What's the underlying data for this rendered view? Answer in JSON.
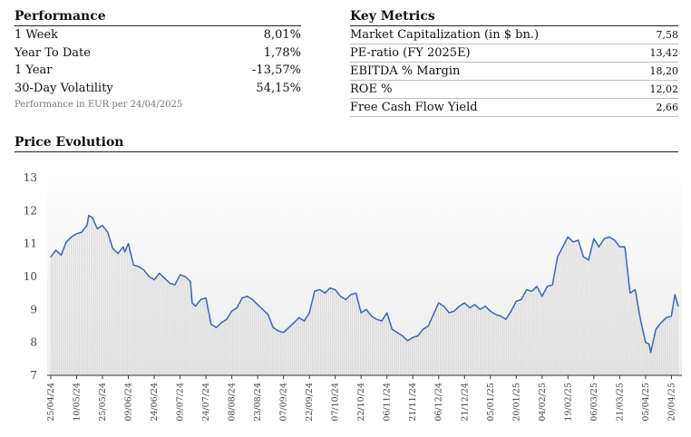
{
  "performance": {
    "title": "Performance",
    "rows": [
      {
        "label": "1 Week",
        "value": "8,01%"
      },
      {
        "label": "Year To Date",
        "value": "1,78%"
      },
      {
        "label": "1 Year",
        "value": "-13,57%"
      },
      {
        "label": "30-Day Volatility",
        "value": "54,15%"
      }
    ],
    "note": "Performance in EUR per 24/04/2025"
  },
  "key_metrics": {
    "title": "Key Metrics",
    "rows": [
      {
        "label": "Market Capitalization (in $ bn.)",
        "value": "7,58"
      },
      {
        "label": "PE-ratio (FY 2025E)",
        "value": "13,42"
      },
      {
        "label": "EBITDA % Margin",
        "value": "18,20"
      },
      {
        "label": "ROE %",
        "value": "12,02"
      },
      {
        "label": "Free Cash Flow Yield",
        "value": "2,66"
      }
    ]
  },
  "price_evolution": {
    "title": "Price Evolution"
  },
  "colors": {
    "line": "#3f66b0",
    "bars": "#d9d9d9",
    "axis": "#333333"
  },
  "chart_data": {
    "type": "line",
    "title": "Price Evolution",
    "ylim": [
      7,
      13
    ],
    "yticks": [
      7,
      8,
      9,
      10,
      11,
      12,
      13
    ],
    "grid": false,
    "xticks": [
      "25/04/24",
      "10/05/24",
      "25/05/24",
      "09/06/24",
      "24/06/24",
      "09/07/24",
      "24/07/24",
      "08/08/24",
      "23/08/24",
      "07/09/24",
      "22/09/24",
      "07/10/24",
      "22/10/24",
      "06/11/24",
      "21/11/24",
      "06/12/24",
      "21/12/24",
      "05/01/25",
      "20/01/25",
      "04/02/25",
      "19/02/25",
      "06/03/25",
      "21/03/25",
      "05/04/25",
      "20/04/25"
    ],
    "series": [
      {
        "x": [
          "25/04/24",
          "28/04/24",
          "01/05/24",
          "04/05/24",
          "07/05/24",
          "10/05/24",
          "13/05/24",
          "16/05/24",
          "17/05/24",
          "19/05/24",
          "22/05/24",
          "25/05/24",
          "28/05/24",
          "31/05/24",
          "03/06/24",
          "06/06/24",
          "07/06/24",
          "09/06/24",
          "12/06/24",
          "15/06/24",
          "18/06/24",
          "21/06/24",
          "24/06/24",
          "27/06/24",
          "30/06/24",
          "03/07/24",
          "06/07/24",
          "09/07/24",
          "12/07/24",
          "15/07/24",
          "16/07/24",
          "18/07/24",
          "21/07/24",
          "24/07/24",
          "27/07/24",
          "30/07/24",
          "02/08/24",
          "05/08/24",
          "08/08/24",
          "11/08/24",
          "14/08/24",
          "17/08/24",
          "20/08/24",
          "23/08/24",
          "26/08/24",
          "29/08/24",
          "01/09/24",
          "04/09/24",
          "07/09/24",
          "10/09/24",
          "13/09/24",
          "16/09/24",
          "19/09/24",
          "22/09/24",
          "25/09/24",
          "28/09/24",
          "01/10/24",
          "04/10/24",
          "07/10/24",
          "10/10/24",
          "13/10/24",
          "16/10/24",
          "19/10/24",
          "22/10/24",
          "25/10/24",
          "28/10/24",
          "31/10/24",
          "03/11/24",
          "06/11/24",
          "09/11/24",
          "12/11/24",
          "15/11/24",
          "18/11/24",
          "21/11/24",
          "24/11/24",
          "27/11/24",
          "30/11/24",
          "03/12/24",
          "06/12/24",
          "09/12/24",
          "12/12/24",
          "15/12/24",
          "18/12/24",
          "21/12/24",
          "24/12/24",
          "27/12/24",
          "30/12/24",
          "02/01/25",
          "05/01/25",
          "08/01/25",
          "11/01/25",
          "14/01/25",
          "17/01/25",
          "20/01/25",
          "23/01/25",
          "26/01/25",
          "29/01/25",
          "01/02/25",
          "04/02/25",
          "07/02/25",
          "10/02/25",
          "13/02/25",
          "16/02/25",
          "19/02/25",
          "22/02/25",
          "25/02/25",
          "28/02/25",
          "03/03/25",
          "06/03/25",
          "09/03/25",
          "12/03/25",
          "15/03/25",
          "18/03/25",
          "21/03/25",
          "24/03/25",
          "27/03/25",
          "30/03/25",
          "02/04/25",
          "05/04/25",
          "07/04/25",
          "08/04/25",
          "11/04/25",
          "14/04/25",
          "17/04/25",
          "20/04/25",
          "22/04/25",
          "24/04/25"
        ],
        "y": [
          10.6,
          10.8,
          10.65,
          11.05,
          11.2,
          11.3,
          11.35,
          11.55,
          11.85,
          11.8,
          11.45,
          11.55,
          11.35,
          10.85,
          10.7,
          10.9,
          10.75,
          11.0,
          10.35,
          10.3,
          10.2,
          10.0,
          9.9,
          10.1,
          9.95,
          9.8,
          9.75,
          10.05,
          10.0,
          9.85,
          9.2,
          9.1,
          9.3,
          9.35,
          8.55,
          8.45,
          8.6,
          8.7,
          8.95,
          9.05,
          9.35,
          9.4,
          9.3,
          9.15,
          9.0,
          8.85,
          8.45,
          8.35,
          8.3,
          8.45,
          8.6,
          8.75,
          8.65,
          8.9,
          9.55,
          9.6,
          9.5,
          9.65,
          9.6,
          9.4,
          9.3,
          9.45,
          9.5,
          8.9,
          9.0,
          8.8,
          8.7,
          8.65,
          8.9,
          8.4,
          8.3,
          8.2,
          8.05,
          8.15,
          8.2,
          8.4,
          8.5,
          8.85,
          9.2,
          9.1,
          8.9,
          8.95,
          9.1,
          9.2,
          9.05,
          9.15,
          9.0,
          9.1,
          8.95,
          8.85,
          8.8,
          8.7,
          8.95,
          9.25,
          9.3,
          9.6,
          9.55,
          9.7,
          9.4,
          9.7,
          9.75,
          10.6,
          10.9,
          11.2,
          11.05,
          11.1,
          10.6,
          10.5,
          11.15,
          10.9,
          11.15,
          11.2,
          11.1,
          10.9,
          10.9,
          9.5,
          9.6,
          8.7,
          8.0,
          7.95,
          7.7,
          8.4,
          8.6,
          8.75,
          8.8,
          9.45,
          9.1
        ]
      }
    ]
  }
}
